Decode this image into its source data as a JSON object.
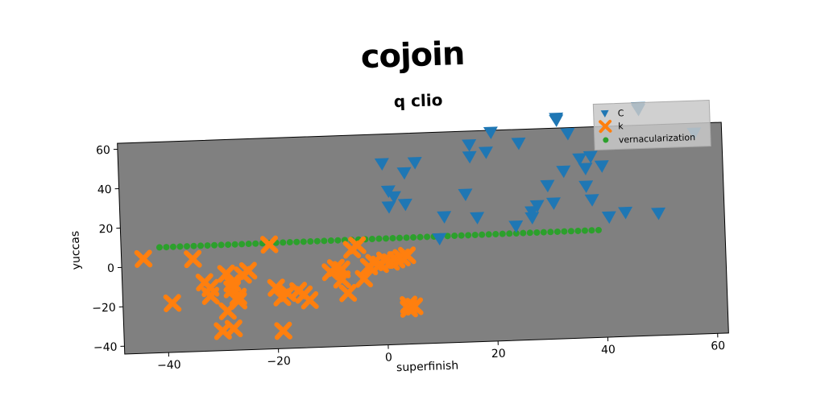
{
  "suptitle": "cojoin",
  "chart_data": {
    "type": "scatter",
    "title": "q clio",
    "xlabel": "superfinish",
    "ylabel": "yuccas",
    "xlim": [
      -48,
      62
    ],
    "ylim": [
      -44,
      63
    ],
    "xticks": [
      -40,
      -20,
      0,
      20,
      40,
      60
    ],
    "yticks": [
      -40,
      -20,
      0,
      20,
      40,
      60
    ],
    "xtick_labels": [
      "−40",
      "−20",
      "0",
      "20",
      "40",
      "60"
    ],
    "ytick_labels": [
      "−40",
      "−20",
      "0",
      "20",
      "40",
      "60"
    ],
    "grid": false,
    "legend": "top-right",
    "plot_background": "#808080",
    "series": [
      {
        "name": "C",
        "marker": "triangle-down",
        "color": "#1f77b4",
        "points": [
          [
            0,
            48
          ],
          [
            1,
            34
          ],
          [
            2,
            31
          ],
          [
            1,
            26
          ],
          [
            4,
            43
          ],
          [
            4,
            27
          ],
          [
            6,
            48
          ],
          [
            10,
            9
          ],
          [
            11,
            20
          ],
          [
            15,
            31
          ],
          [
            16,
            56
          ],
          [
            16,
            50
          ],
          [
            17,
            19
          ],
          [
            19,
            52
          ],
          [
            20,
            62
          ],
          [
            24,
            14
          ],
          [
            25,
            56
          ],
          [
            27,
            21
          ],
          [
            27,
            18
          ],
          [
            28,
            24
          ],
          [
            30,
            34
          ],
          [
            31,
            25
          ],
          [
            32,
            68
          ],
          [
            32,
            67
          ],
          [
            33,
            41
          ],
          [
            34,
            60
          ],
          [
            36,
            47
          ],
          [
            37,
            42
          ],
          [
            37,
            33
          ],
          [
            38,
            48
          ],
          [
            38,
            26
          ],
          [
            40,
            43
          ],
          [
            41,
            17
          ],
          [
            44,
            19
          ],
          [
            47,
            71
          ],
          [
            47,
            72
          ],
          [
            50,
            18
          ],
          [
            57,
            58
          ]
        ]
      },
      {
        "name": "k",
        "marker": "x",
        "color": "#ff7f0e",
        "points": [
          [
            -44,
            4
          ],
          [
            -39,
            -19
          ],
          [
            -35,
            3
          ],
          [
            -33,
            -9
          ],
          [
            -32,
            -12
          ],
          [
            -32,
            -16
          ],
          [
            -30,
            -34
          ],
          [
            -29,
            -5
          ],
          [
            -29,
            -24
          ],
          [
            -28,
            -13
          ],
          [
            -28,
            -10
          ],
          [
            -28,
            -33
          ],
          [
            -27,
            -17
          ],
          [
            -27,
            -19
          ],
          [
            -26,
            -6
          ],
          [
            -25,
            -4
          ],
          [
            -21,
            9
          ],
          [
            -20,
            -13
          ],
          [
            -19,
            -18
          ],
          [
            -19,
            -35
          ],
          [
            -18,
            -16
          ],
          [
            -16,
            -15
          ],
          [
            -15,
            -17
          ],
          [
            -14,
            -20
          ],
          [
            -10,
            -6
          ],
          [
            -9,
            -4
          ],
          [
            -8,
            -10
          ],
          [
            -8,
            -5
          ],
          [
            -7,
            -17
          ],
          [
            -6,
            5
          ],
          [
            -5,
            7
          ],
          [
            -4,
            -10
          ],
          [
            -3,
            -4
          ],
          [
            -2,
            -2
          ],
          [
            -1,
            -3
          ],
          [
            0,
            -1
          ],
          [
            1,
            -2
          ],
          [
            2,
            -1
          ],
          [
            3,
            0
          ],
          [
            4,
            1
          ],
          [
            4,
            -24
          ],
          [
            4,
            -26
          ],
          [
            5,
            -25
          ]
        ]
      },
      {
        "name": "vernacularization",
        "marker": "circle",
        "color": "#2ca02c",
        "x_start": -41,
        "x_end": 39,
        "x_step": 1.25,
        "y_start": 9.5,
        "y_end": 10.5
      }
    ]
  }
}
